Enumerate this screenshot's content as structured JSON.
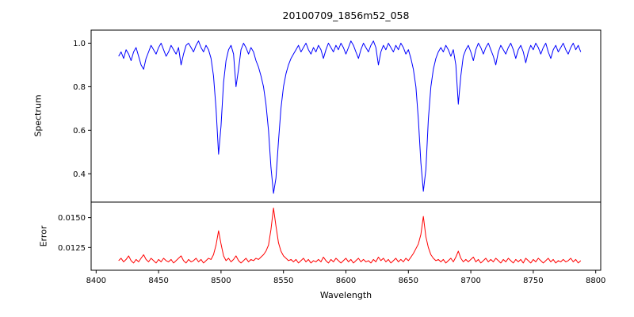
{
  "title": "20100709_1856m52_058",
  "axes": {
    "xlabel": "Wavelength",
    "spectrum_ylabel": "Spectrum",
    "error_ylabel": "Error"
  },
  "chart_data": [
    {
      "type": "line",
      "name": "spectrum",
      "title": "20100709_1856m52_058",
      "ylabel": "Spectrum",
      "color": "#0000ff",
      "x_start": 8418,
      "x_step": 2,
      "xlim": [
        8396,
        8804
      ],
      "ylim": [
        0.27,
        1.06
      ],
      "y_ticks": [
        0.4,
        0.6,
        0.8,
        1.0
      ],
      "y_tick_labels": [
        "0.4",
        "0.6",
        "0.8",
        "1.0"
      ],
      "grid": false,
      "legend": "none",
      "values": [
        0.94,
        0.96,
        0.93,
        0.97,
        0.95,
        0.92,
        0.96,
        0.98,
        0.94,
        0.9,
        0.88,
        0.93,
        0.96,
        0.99,
        0.97,
        0.95,
        0.98,
        1.0,
        0.97,
        0.94,
        0.96,
        0.99,
        0.97,
        0.95,
        0.98,
        0.9,
        0.95,
        0.99,
        1.0,
        0.98,
        0.96,
        0.99,
        1.01,
        0.98,
        0.96,
        0.99,
        0.97,
        0.93,
        0.85,
        0.7,
        0.49,
        0.62,
        0.82,
        0.92,
        0.97,
        0.99,
        0.95,
        0.8,
        0.88,
        0.97,
        1.0,
        0.98,
        0.95,
        0.98,
        0.96,
        0.92,
        0.89,
        0.85,
        0.8,
        0.72,
        0.6,
        0.43,
        0.31,
        0.38,
        0.55,
        0.7,
        0.8,
        0.86,
        0.9,
        0.93,
        0.95,
        0.97,
        0.99,
        0.96,
        0.98,
        1.0,
        0.97,
        0.95,
        0.98,
        0.96,
        0.99,
        0.97,
        0.93,
        0.97,
        1.0,
        0.98,
        0.96,
        0.99,
        0.97,
        1.0,
        0.98,
        0.95,
        0.98,
        1.01,
        0.99,
        0.96,
        0.93,
        0.97,
        1.0,
        0.98,
        0.96,
        0.99,
        1.01,
        0.98,
        0.9,
        0.96,
        0.99,
        0.97,
        1.0,
        0.98,
        0.96,
        0.99,
        0.97,
        1.0,
        0.98,
        0.95,
        0.97,
        0.93,
        0.88,
        0.8,
        0.65,
        0.45,
        0.32,
        0.42,
        0.65,
        0.8,
        0.88,
        0.93,
        0.96,
        0.98,
        0.96,
        0.99,
        0.97,
        0.94,
        0.97,
        0.9,
        0.72,
        0.85,
        0.94,
        0.97,
        0.99,
        0.96,
        0.92,
        0.97,
        1.0,
        0.98,
        0.95,
        0.98,
        1.0,
        0.97,
        0.94,
        0.9,
        0.96,
        0.99,
        0.97,
        0.95,
        0.98,
        1.0,
        0.97,
        0.93,
        0.97,
        0.99,
        0.96,
        0.91,
        0.96,
        0.99,
        0.97,
        1.0,
        0.98,
        0.95,
        0.98,
        1.0,
        0.96,
        0.93,
        0.97,
        0.99,
        0.96,
        0.98,
        1.0,
        0.97,
        0.95,
        0.98,
        1.0,
        0.97,
        0.99,
        0.96
      ]
    },
    {
      "type": "line",
      "name": "error",
      "ylabel": "Error",
      "xlabel": "Wavelength",
      "color": "#ff0000",
      "x_start": 8418,
      "x_step": 2,
      "xlim": [
        8396,
        8804
      ],
      "ylim": [
        0.0106,
        0.0163
      ],
      "y_ticks": [
        0.0125,
        0.015
      ],
      "y_tick_labels": [
        "0.0125",
        "0.0150"
      ],
      "x_ticks": [
        8400,
        8450,
        8500,
        8550,
        8600,
        8650,
        8700,
        8750,
        8800
      ],
      "x_tick_labels": [
        "8400",
        "8450",
        "8500",
        "8550",
        "8600",
        "8650",
        "8700",
        "8750",
        "8800"
      ],
      "grid": false,
      "legend": "none",
      "values": [
        0.0114,
        0.0116,
        0.0113,
        0.0115,
        0.0118,
        0.0114,
        0.0112,
        0.0115,
        0.0113,
        0.0116,
        0.0119,
        0.0115,
        0.0113,
        0.0116,
        0.0114,
        0.0112,
        0.0115,
        0.0113,
        0.0116,
        0.0114,
        0.0113,
        0.0115,
        0.0112,
        0.0114,
        0.0116,
        0.0118,
        0.0114,
        0.0112,
        0.0115,
        0.0113,
        0.0114,
        0.0116,
        0.0113,
        0.0115,
        0.0112,
        0.0114,
        0.0116,
        0.0115,
        0.0119,
        0.0127,
        0.0139,
        0.0128,
        0.0118,
        0.0114,
        0.0116,
        0.0113,
        0.0115,
        0.0118,
        0.0114,
        0.0112,
        0.0114,
        0.0116,
        0.0113,
        0.0115,
        0.0114,
        0.0116,
        0.0115,
        0.0117,
        0.0119,
        0.0122,
        0.0127,
        0.014,
        0.0158,
        0.0143,
        0.0129,
        0.0122,
        0.0118,
        0.0116,
        0.0114,
        0.0115,
        0.0113,
        0.0115,
        0.0112,
        0.0114,
        0.0116,
        0.0113,
        0.0115,
        0.0112,
        0.0114,
        0.0113,
        0.0115,
        0.0113,
        0.0117,
        0.0114,
        0.0112,
        0.0115,
        0.0113,
        0.0116,
        0.0114,
        0.0112,
        0.0114,
        0.0116,
        0.0113,
        0.0115,
        0.0112,
        0.0114,
        0.0116,
        0.0113,
        0.0115,
        0.0113,
        0.0114,
        0.0112,
        0.0115,
        0.0113,
        0.0117,
        0.0114,
        0.0116,
        0.0113,
        0.0115,
        0.0112,
        0.0114,
        0.0116,
        0.0113,
        0.0115,
        0.0113,
        0.0116,
        0.0114,
        0.0117,
        0.012,
        0.0124,
        0.0128,
        0.0136,
        0.0151,
        0.0134,
        0.0125,
        0.0119,
        0.0116,
        0.0114,
        0.0115,
        0.0113,
        0.0115,
        0.0112,
        0.0114,
        0.0116,
        0.0113,
        0.0117,
        0.0122,
        0.0116,
        0.0113,
        0.0115,
        0.0113,
        0.0115,
        0.0117,
        0.0113,
        0.0115,
        0.0112,
        0.0114,
        0.0116,
        0.0113,
        0.0115,
        0.0113,
        0.0116,
        0.0114,
        0.0112,
        0.0115,
        0.0113,
        0.0116,
        0.0114,
        0.0112,
        0.0115,
        0.0113,
        0.0115,
        0.0112,
        0.0116,
        0.0114,
        0.0112,
        0.0115,
        0.0113,
        0.0116,
        0.0114,
        0.0112,
        0.0114,
        0.0116,
        0.0113,
        0.0115,
        0.0112,
        0.0114,
        0.0113,
        0.0115,
        0.0113,
        0.0114,
        0.0116,
        0.0113,
        0.0115,
        0.0112,
        0.0114
      ]
    }
  ]
}
